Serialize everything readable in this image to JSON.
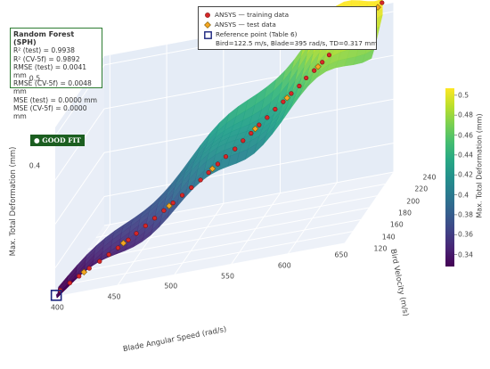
{
  "metrics": {
    "title": "Random Forest (SPH)",
    "lines": [
      "R² (test) = 0.9938",
      "R² (CV-5f) = 0.9892",
      "RMSE (test) = 0.0041 mm",
      "RMSE (CV-5f) = 0.0048 mm",
      "MSE (test) = 0.0000 mm",
      "MSE (CV-5f) = 0.0000 mm"
    ]
  },
  "badge": {
    "label": "● GOOD FIT"
  },
  "legend": {
    "training": "ANSYS — training data",
    "test": "ANSYS — test data",
    "reference_line1": "Reference point (Table 6)",
    "reference_line2": "Bird=122.5 m/s, Blade=395 rad/s, TD=0.317 mm"
  },
  "colors": {
    "training": "#d62728",
    "test": "#f5a623",
    "reference": "#1a237e",
    "badge": "#1b5e20",
    "box_border": "#2e7d32"
  },
  "chart_data": {
    "type": "3d-surface-scatter",
    "x_label": "Blade Angular Speed (rad/s)",
    "y_label": "Bird Velocity (m/s)",
    "z_label": "Max. Total Deformation (mm)",
    "colorbar_title": "Max. Total Deformation (mm)",
    "x_range": [
      395,
      650
    ],
    "y_range": [
      120,
      240
    ],
    "z_range": [
      0.317,
      0.51
    ],
    "x_ticks": [
      400,
      450,
      500,
      550,
      600,
      650
    ],
    "y_ticks": [
      120,
      140,
      160,
      180,
      200,
      220,
      240
    ],
    "z_ticks": [
      0.4,
      0.5
    ],
    "colorbar_ticks": [
      0.34,
      0.36,
      0.38,
      0.4,
      0.42,
      0.44,
      0.46,
      0.48,
      0.5
    ],
    "colorscale": "viridis",
    "reference_point": {
      "x": 395,
      "y": 122.5,
      "z": 0.317
    },
    "training": [
      [
        398,
        124,
        0.318
      ],
      [
        405,
        128,
        0.322
      ],
      [
        412,
        131,
        0.326
      ],
      [
        420,
        134,
        0.331
      ],
      [
        428,
        137,
        0.335
      ],
      [
        435,
        140,
        0.339
      ],
      [
        442,
        143,
        0.343
      ],
      [
        450,
        146,
        0.348
      ],
      [
        456,
        149,
        0.352
      ],
      [
        463,
        152,
        0.357
      ],
      [
        470,
        155,
        0.362
      ],
      [
        477,
        158,
        0.367
      ],
      [
        484,
        161,
        0.372
      ],
      [
        491,
        164,
        0.377
      ],
      [
        498,
        167,
        0.382
      ],
      [
        505,
        170,
        0.387
      ],
      [
        511,
        173,
        0.392
      ],
      [
        518,
        176,
        0.398
      ],
      [
        524,
        179,
        0.403
      ],
      [
        531,
        182,
        0.408
      ],
      [
        537,
        185,
        0.414
      ],
      [
        543,
        188,
        0.419
      ],
      [
        549,
        191,
        0.425
      ],
      [
        555,
        194,
        0.43
      ],
      [
        561,
        197,
        0.436
      ],
      [
        567,
        200,
        0.441
      ],
      [
        573,
        203,
        0.447
      ],
      [
        579,
        206,
        0.452
      ],
      [
        584,
        209,
        0.458
      ],
      [
        590,
        212,
        0.463
      ],
      [
        596,
        215,
        0.469
      ],
      [
        601,
        218,
        0.474
      ],
      [
        607,
        221,
        0.48
      ],
      [
        612,
        224,
        0.485
      ],
      [
        618,
        227,
        0.491
      ],
      [
        623,
        230,
        0.496
      ],
      [
        629,
        233,
        0.501
      ],
      [
        634,
        236,
        0.505
      ],
      [
        640,
        239,
        0.51
      ]
    ],
    "test": [
      [
        416,
        132,
        0.329
      ],
      [
        446,
        145,
        0.346
      ],
      [
        481,
        160,
        0.37
      ],
      [
        514,
        174,
        0.395
      ],
      [
        546,
        190,
        0.422
      ],
      [
        570,
        201,
        0.444
      ],
      [
        593,
        213,
        0.466
      ],
      [
        616,
        226,
        0.488
      ],
      [
        637,
        237,
        0.507
      ]
    ]
  }
}
